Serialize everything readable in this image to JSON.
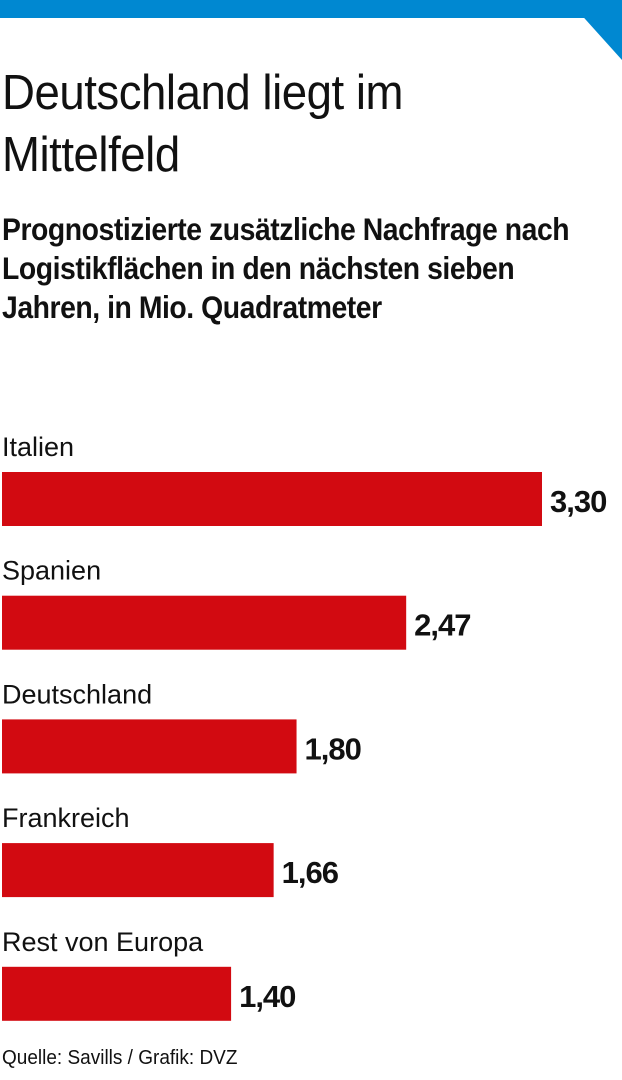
{
  "header": {
    "title": "Deutschland liegt im Mittelfeld",
    "subtitle": "Prognostizierte zusätzliche Nachfrage nach Logistikflächen in den nächsten sieben Jahren, in Mio. Quadratmeter",
    "accent_color": "#0088d1"
  },
  "chart_data": {
    "type": "bar",
    "orientation": "horizontal",
    "title": "Deutschland liegt im Mittelfeld",
    "subtitle": "Prognostizierte zusätzliche Nachfrage nach Logistikflächen in den nächsten sieben Jahren, in Mio. Quadratmeter",
    "xlabel": "",
    "ylabel": "",
    "unit": "Mio. Quadratmeter",
    "categories": [
      "Italien",
      "Spanien",
      "Deutschland",
      "Frankreich",
      "Rest von Europa"
    ],
    "values": [
      3.3,
      2.47,
      1.8,
      1.66,
      1.4
    ],
    "value_labels": [
      "3,30",
      "2,47",
      "1,80",
      "1,66",
      "1,40"
    ],
    "bar_color": "#d20a11",
    "grid": false,
    "legend": "none",
    "xlim": [
      0,
      3.3
    ]
  },
  "footer": {
    "source": "Quelle: Savills / Grafik: DVZ"
  }
}
